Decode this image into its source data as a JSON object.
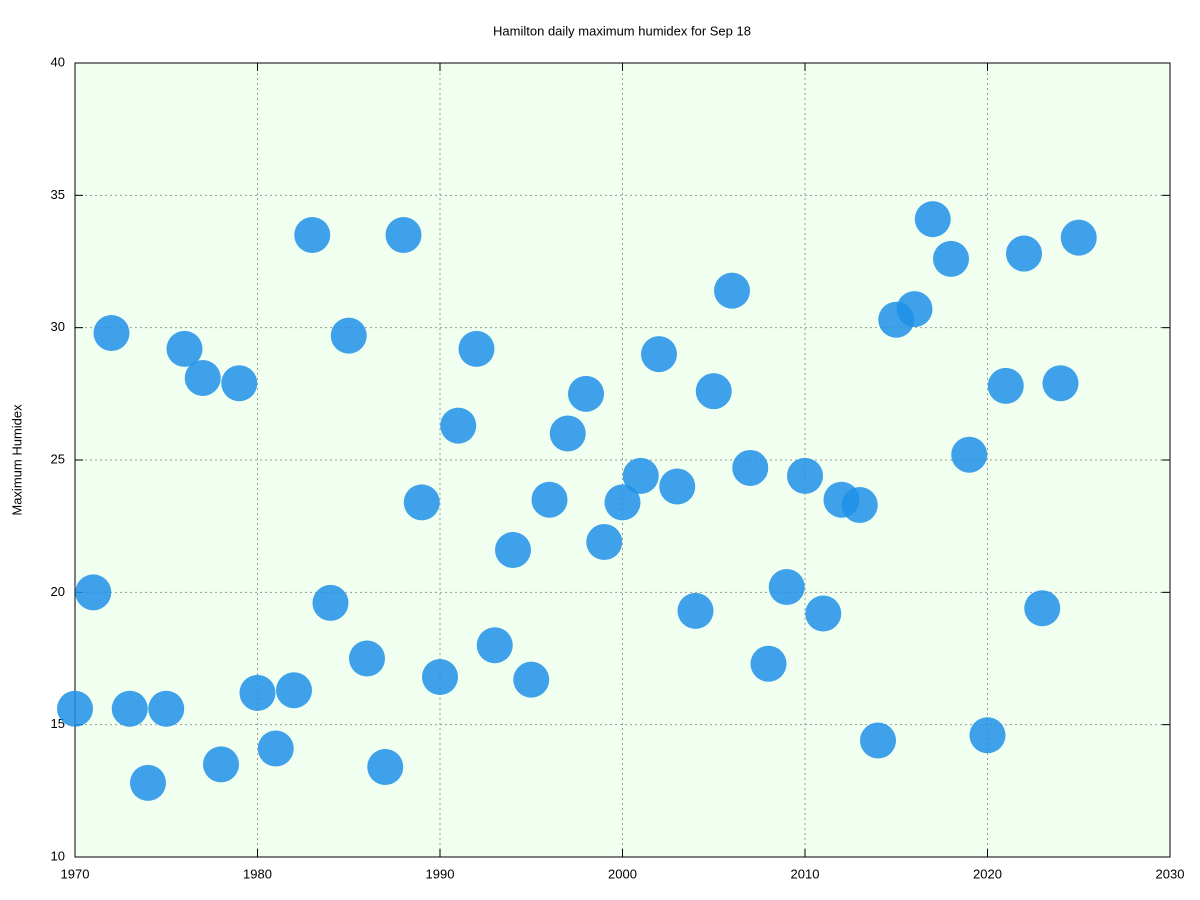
{
  "chart_data": {
    "type": "scatter",
    "title": "Hamilton daily maximum humidex for Sep 18",
    "y_label": "Maximum Humidex",
    "x": [
      1970,
      1971,
      1972,
      1973,
      1974,
      1975,
      1976,
      1977,
      1978,
      1979,
      1980,
      1981,
      1982,
      1983,
      1984,
      1985,
      1986,
      1987,
      1988,
      1989,
      1990,
      1991,
      1992,
      1993,
      1994,
      1995,
      1996,
      1997,
      1998,
      1999,
      2000,
      2001,
      2002,
      2003,
      2004,
      2005,
      2006,
      2007,
      2008,
      2009,
      2010,
      2011,
      2012,
      2013,
      2014,
      2015,
      2016,
      2017,
      2018,
      2019,
      2020,
      2021,
      2022,
      2023,
      2024,
      2025
    ],
    "values": [
      15.6,
      20.0,
      29.8,
      15.6,
      12.8,
      15.6,
      29.2,
      28.1,
      13.5,
      27.9,
      16.2,
      14.1,
      16.3,
      33.5,
      19.6,
      29.7,
      17.5,
      13.4,
      33.5,
      23.4,
      16.8,
      26.3,
      29.2,
      18.0,
      21.6,
      16.7,
      23.5,
      26.0,
      27.5,
      21.9,
      23.4,
      24.4,
      29.0,
      24.0,
      19.3,
      27.6,
      31.4,
      24.7,
      17.3,
      20.2,
      24.4,
      19.2,
      23.5,
      23.3,
      14.4,
      30.3,
      30.7,
      34.1,
      32.6,
      25.2,
      14.6,
      27.8,
      32.8,
      19.4,
      27.9,
      33.4
    ],
    "color": "#1e90e8",
    "background": "#f0fff0",
    "xlim": [
      1970,
      2030
    ],
    "ylim": [
      10,
      40
    ],
    "xticks": [
      1970,
      1980,
      1990,
      2000,
      2010,
      2020,
      2030
    ],
    "yticks": [
      10,
      15,
      20,
      25,
      30,
      35,
      40
    ],
    "grid": true
  }
}
